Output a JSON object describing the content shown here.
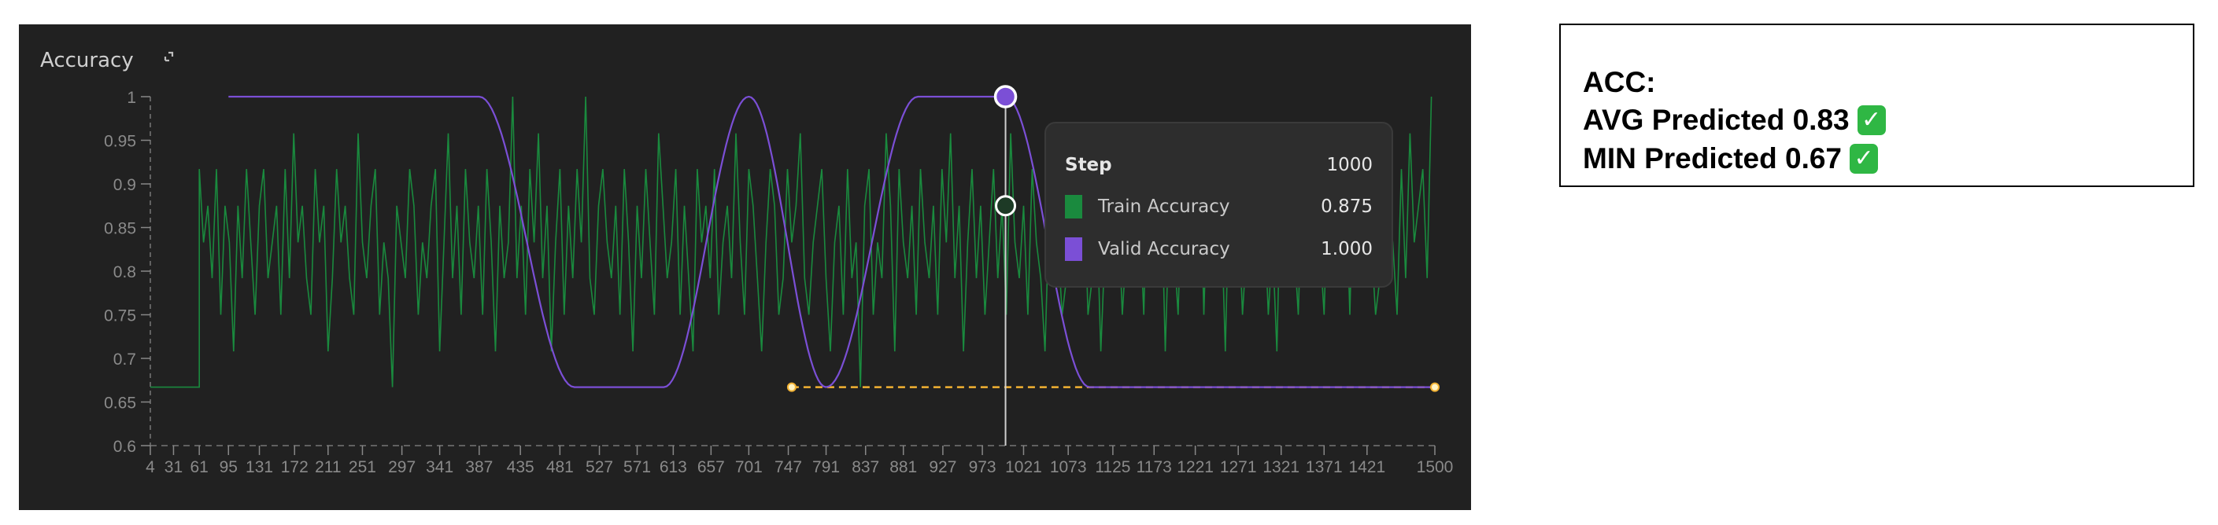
{
  "chart_data": {
    "type": "line",
    "title": "Accuracy",
    "xlim": [
      4,
      1500
    ],
    "ylim": [
      0.6,
      1
    ],
    "x_ticks": [
      "4",
      "31",
      "61",
      "95",
      "131",
      "172",
      "211",
      "251",
      "297",
      "341",
      "387",
      "435",
      "481",
      "527",
      "571",
      "613",
      "657",
      "701",
      "747",
      "791",
      "837",
      "881",
      "927",
      "973",
      "1021",
      "1073",
      "1125",
      "1173",
      "1221",
      "1271",
      "1321",
      "1371",
      "1421",
      "1500"
    ],
    "y_ticks": [
      "0.6",
      "0.65",
      "0.7",
      "0.75",
      "0.8",
      "0.85",
      "0.9",
      "0.95",
      "1"
    ],
    "grid": false,
    "series": [
      {
        "name": "Train Accuracy",
        "color": "#1a8a3e",
        "initial_points": [
          [
            4,
            0.667
          ],
          [
            61,
            0.667
          ]
        ],
        "x_start": 61,
        "x_interval": 5,
        "values": [
          0.917,
          0.833,
          0.875,
          0.792,
          0.917,
          0.75,
          0.875,
          0.833,
          0.708,
          0.875,
          0.792,
          0.917,
          0.833,
          0.75,
          0.875,
          0.917,
          0.792,
          0.833,
          0.875,
          0.75,
          0.917,
          0.792,
          0.958,
          0.833,
          0.875,
          0.792,
          0.75,
          0.917,
          0.833,
          0.875,
          0.708,
          0.792,
          0.917,
          0.833,
          0.875,
          0.792,
          0.75,
          0.958,
          0.833,
          0.792,
          0.875,
          0.917,
          0.75,
          0.833,
          0.792,
          0.667,
          0.875,
          0.833,
          0.792,
          0.917,
          0.875,
          0.75,
          0.833,
          0.792,
          0.875,
          0.917,
          0.708,
          0.833,
          0.958,
          0.792,
          0.875,
          0.75,
          0.917,
          0.833,
          0.792,
          0.875,
          0.75,
          0.917,
          0.833,
          0.708,
          0.875,
          0.792,
          0.833,
          1,
          0.792,
          0.875,
          0.75,
          0.917,
          0.833,
          0.958,
          0.792,
          0.875,
          0.708,
          0.833,
          0.917,
          0.75,
          0.875,
          0.792,
          0.917,
          0.833,
          1,
          0.792,
          0.75,
          0.875,
          0.917,
          0.833,
          0.792,
          0.875,
          0.75,
          0.917,
          0.833,
          0.708,
          0.875,
          0.792,
          0.917,
          0.833,
          0.75,
          0.958,
          0.875,
          0.792,
          0.833,
          0.917,
          0.75,
          0.875,
          0.792,
          0.708,
          0.917,
          0.833,
          0.875,
          0.792,
          0.917,
          0.75,
          0.833,
          0.875,
          0.792,
          0.958,
          0.833,
          0.75,
          0.917,
          0.875,
          0.792,
          0.708,
          0.833,
          0.917,
          0.875,
          0.75,
          0.792,
          0.917,
          0.833,
          0.875,
          0.958,
          0.792,
          0.75,
          0.833,
          0.875,
          0.917,
          0.792,
          0.708,
          0.833,
          0.875,
          0.75,
          0.917,
          0.792,
          0.833,
          0.667,
          0.875,
          0.917,
          0.75,
          0.833,
          0.792,
          0.958,
          0.875,
          0.708,
          0.917,
          0.833,
          0.792,
          0.875,
          0.75,
          0.917,
          0.833,
          0.792,
          0.875,
          0.75,
          0.917,
          0.833,
          0.958,
          0.792,
          0.875,
          0.708,
          0.833,
          0.917,
          0.792,
          0.875,
          0.75,
          0.833,
          0.917,
          0.792,
          0.875,
          0.75,
          0.958,
          0.833,
          0.792,
          0.875,
          0.75,
          0.917,
          0.833,
          0.792,
          0.708,
          0.875,
          0.917,
          0.833,
          0.75,
          0.792,
          0.958,
          0.875,
          0.833,
          0.917,
          0.75,
          0.792,
          0.875,
          0.708,
          0.833,
          0.917,
          0.792,
          0.875,
          0.75,
          0.833,
          0.917,
          0.792,
          0.875,
          0.75,
          0.958,
          0.833,
          0.792,
          0.917,
          0.708,
          0.875,
          0.833,
          0.75,
          0.917,
          0.792,
          0.875,
          0.833,
          0.958,
          0.75,
          0.917,
          0.792,
          0.833,
          0.875,
          0.708,
          0.917,
          0.792,
          0.875,
          0.75,
          0.833,
          0.917,
          0.792,
          0.958,
          0.875,
          0.75,
          0.833,
          0.708,
          0.917,
          0.792,
          0.875,
          0.833,
          0.75,
          0.917,
          0.958,
          0.792,
          0.875,
          0.833,
          0.75,
          0.917,
          0.792,
          0.875,
          0.833,
          0.917,
          0.75,
          0.958,
          0.792,
          0.875,
          0.917,
          0.833,
          0.75,
          0.792,
          0.917,
          0.875,
          0.833,
          0.75,
          0.917,
          0.792,
          0.958,
          0.833,
          0.875,
          0.917,
          0.792,
          1
        ]
      },
      {
        "name": "Valid Accuracy",
        "color": "#7b4fd6",
        "keypoints": [
          [
            95,
            1
          ],
          [
            387,
            1
          ],
          [
            498,
            0.667
          ],
          [
            602,
            0.667
          ],
          [
            701,
            1
          ],
          [
            791,
            0.667
          ],
          [
            898,
            1
          ],
          [
            1000,
            1
          ],
          [
            1098,
            0.667
          ],
          [
            1500,
            0.667
          ]
        ]
      }
    ],
    "reference_line": {
      "color": "#f2b233",
      "value": 0.667,
      "x_range": [
        751,
        1500
      ],
      "style": "dashed"
    },
    "hover": {
      "step": 1000,
      "train": 0.875,
      "valid": 1.0
    }
  },
  "tooltip": {
    "step_label": "Step",
    "step_value": "1000",
    "rows": [
      {
        "label": "Train Accuracy",
        "value": "0.875",
        "color": "#1a8a3e"
      },
      {
        "label": "Valid Accuracy",
        "value": "1.000",
        "color": "#7b4fd6"
      }
    ]
  },
  "header": {
    "title": "Accuracy",
    "expand_icon": "expand-icon"
  },
  "summary": {
    "heading": "ACC:",
    "lines": [
      {
        "text": "AVG Predicted 0.83",
        "icon": "check-mark-button-icon"
      },
      {
        "text": "MIN Predicted 0.67",
        "icon": "check-mark-button-icon"
      }
    ],
    "check_glyph": "✓"
  }
}
